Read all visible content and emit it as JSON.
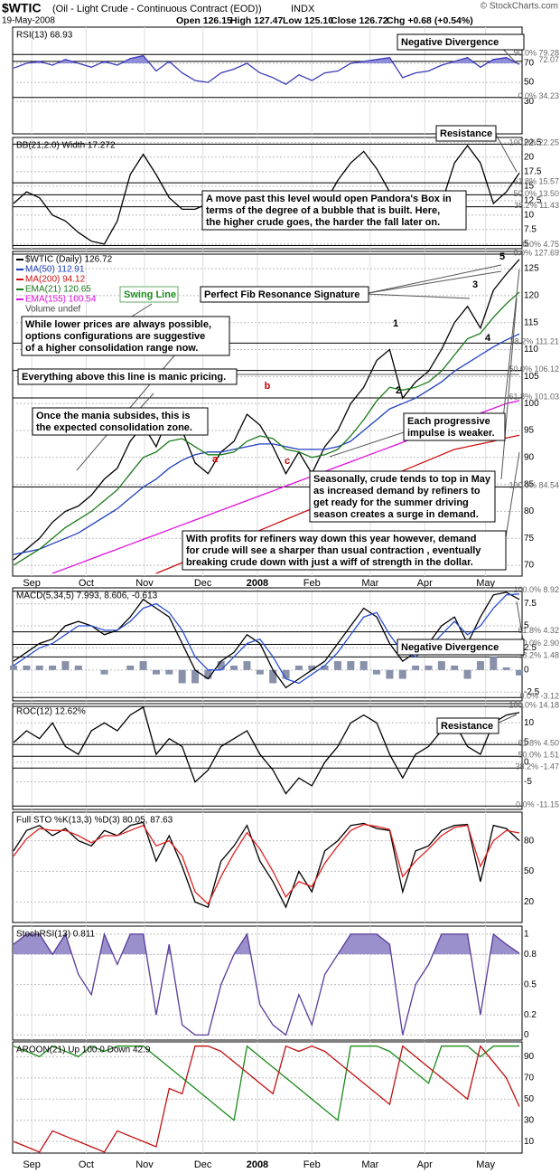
{
  "header": {
    "symbol": "$WTIC",
    "name": "(Oil - Light Crude - Continuous Contract (EOD))",
    "exchange": "INDX",
    "date": "19-May-2008",
    "quote": [
      "Open 126.15",
      "High 127.47",
      "Low 125.10",
      "Close 126.72",
      "Chg +0.68 (+0.54%)"
    ],
    "copyright": "© StockCharts.com"
  },
  "x_axis": {
    "ticks": [
      {
        "value": 1.4,
        "label": "Sep"
      },
      {
        "value": 5.6,
        "label": "Oct"
      },
      {
        "value": 10.1,
        "label": "Nov"
      },
      {
        "value": 14.6,
        "label": "Dec"
      },
      {
        "value": 18.8,
        "label": "2008"
      },
      {
        "value": 23,
        "label": "Feb"
      },
      {
        "value": 27.5,
        "label": "Mar"
      },
      {
        "value": 31.7,
        "label": "Apr"
      },
      {
        "value": 36.4,
        "label": "May"
      }
    ]
  },
  "chart_data": [
    {
      "type": "line",
      "ylim": [
        -4,
        108
      ],
      "yticks": [
        30,
        50,
        70
      ],
      "fill_above": 70,
      "fill_color": "#8e8ed8",
      "series": [
        {
          "name": "RSI(13) 68.93",
          "color": "#3a3ab8",
          "values": [
            65,
            70,
            72,
            68,
            74,
            70,
            66,
            72,
            68,
            75,
            78,
            62,
            72,
            60,
            52,
            50,
            60,
            64,
            70,
            60,
            55,
            48,
            58,
            52,
            60,
            62,
            70,
            72,
            74,
            76,
            55,
            60,
            62,
            68,
            72,
            76,
            66,
            74,
            76,
            68.93
          ]
        }
      ],
      "fib_levels": [
        {
          "value": 79.28,
          "label": "90.0% 79.28"
        },
        {
          "value": 72.07,
          "label": "72.07"
        },
        {
          "value": 34.23,
          "label": "0.0% 34.23"
        }
      ]
    },
    {
      "type": "line",
      "ylim": [
        4.2,
        23.4
      ],
      "yticks": [
        22.5,
        20.0,
        17.5,
        15.0,
        12.5,
        10.0,
        7.5,
        5.0
      ],
      "series": [
        {
          "name": "BB(21,2.0) Width 17.272",
          "color": "#000000",
          "values": [
            12,
            14,
            13,
            10,
            9,
            7,
            5.5,
            5,
            9,
            17,
            20.5,
            17,
            13,
            11,
            11,
            12,
            13,
            12,
            12,
            11,
            12,
            11,
            10,
            9,
            12,
            16,
            19,
            21,
            18,
            14,
            12,
            11,
            9,
            12,
            19,
            22,
            19,
            12,
            14,
            17.272
          ]
        }
      ],
      "fib_levels": [
        {
          "value": 22.25,
          "label": "100.0% 22.25"
        },
        {
          "value": 15.57,
          "label": "61.8% 15.57"
        },
        {
          "value": 13.5,
          "label": "50.0% 13.50"
        },
        {
          "value": 11.43,
          "label": "38.2% 11.43"
        },
        {
          "value": 4.75,
          "label": "0.0% 4.75"
        }
      ]
    },
    {
      "type": "line",
      "ylim": [
        68,
        128.2
      ],
      "yticks": [
        125,
        120,
        115,
        110,
        105,
        100,
        95,
        90,
        85,
        80,
        75,
        70
      ],
      "legend_extra": "Volume undef",
      "series": [
        {
          "name": "$WTIC (Daily) 126.72",
          "color": "#000000",
          "values": [
            71,
            73,
            75,
            78,
            80,
            81,
            83,
            86,
            88,
            93,
            96,
            92,
            98,
            95,
            89,
            87,
            91,
            93,
            98,
            96,
            92,
            87,
            91,
            87,
            92,
            95,
            100,
            103,
            108,
            110,
            101,
            104,
            106,
            110,
            115,
            118,
            114,
            121,
            124,
            126.72
          ]
        },
        {
          "name": "MA(50) 112.91",
          "color": "#1f3fbf",
          "values": [
            72,
            72.5,
            73,
            74,
            75,
            76,
            77.5,
            79,
            80.5,
            82.5,
            84.5,
            86,
            88,
            89.5,
            90.5,
            91,
            91,
            91.5,
            92,
            92.5,
            92.5,
            92,
            91.5,
            91.5,
            91.5,
            92,
            93,
            95,
            97,
            99,
            100,
            101,
            102.5,
            104,
            106,
            107.5,
            109,
            110.5,
            111.8,
            112.91
          ]
        },
        {
          "name": "MA(200) 94.12",
          "color": "#d01010",
          "values": [
            null,
            null,
            null,
            null,
            null,
            null,
            null,
            null,
            null,
            null,
            null,
            68.5,
            69.5,
            70.5,
            71.5,
            72.5,
            73.5,
            74.5,
            75.5,
            76.5,
            77.5,
            78.5,
            79.5,
            80.5,
            81.5,
            82.5,
            83.5,
            84.5,
            85.5,
            86.5,
            87.5,
            88.5,
            89.5,
            90.5,
            91.5,
            92,
            92.5,
            93,
            93.6,
            94.12
          ]
        },
        {
          "name": "EMA(21) 120.65",
          "color": "#1a7a1a",
          "values": [
            70,
            71.5,
            73,
            75,
            77,
            78.5,
            80,
            82,
            84,
            87,
            90,
            91,
            93,
            93.5,
            92,
            90.5,
            90.5,
            91,
            93,
            94,
            93.5,
            91.5,
            91,
            90,
            90.5,
            91.5,
            94,
            97,
            100.5,
            103,
            102.5,
            103,
            104,
            106,
            109,
            112,
            113,
            116,
            118.5,
            120.65
          ]
        },
        {
          "name": "EMA(155) 100.54",
          "color": "#e010e0",
          "values": [
            null,
            null,
            null,
            68.5,
            69.4,
            70.3,
            71.2,
            72.1,
            73.0,
            73.9,
            74.8,
            75.7,
            76.6,
            77.5,
            78.4,
            79.3,
            80.2,
            81.1,
            82.0,
            82.9,
            83.8,
            84.7,
            85.6,
            86.5,
            87.4,
            88.3,
            89.2,
            90.1,
            91.0,
            91.9,
            92.8,
            93.7,
            94.6,
            95.5,
            96.4,
            97.3,
            98.2,
            99.1,
            100.0,
            100.54
          ]
        }
      ],
      "fib_levels": [
        {
          "value": 127.69,
          "label": "0.0% 127.69"
        },
        {
          "value": 111.21,
          "label": "38.2% 111.21"
        },
        {
          "value": 106.12,
          "label": "50.0% 106.12"
        },
        {
          "value": 101.03,
          "label": "61.8% 101.03"
        },
        {
          "value": 84.54,
          "label": "100.0% 84.54"
        }
      ]
    },
    {
      "type": "macd",
      "label": "MACD(5,34,5) 7.993, 8.606, -0.613",
      "ylim": [
        -3.5,
        9.3
      ],
      "yticks": [
        7.5,
        5.0,
        2.5,
        0.0,
        -2.5
      ],
      "histogram": {
        "color": "#8890aa",
        "values": [
          0.5,
          0.5,
          0.5,
          0.5,
          1,
          0.5,
          0,
          -0.5,
          0,
          0.5,
          1,
          -0.5,
          -0.5,
          -1.5,
          -1.5,
          -1,
          1,
          0.5,
          1,
          -0.5,
          -1.5,
          -1,
          0.5,
          0.5,
          0.5,
          1,
          1,
          1,
          -0.5,
          -1,
          -1,
          0.5,
          0.5,
          1,
          0.5,
          -1,
          1,
          1.5,
          0.3,
          -0.613
        ]
      },
      "series": [
        {
          "color": "#000000",
          "values": [
            1,
            2,
            3,
            3.5,
            5,
            5.5,
            5,
            4,
            4.5,
            6,
            8,
            7,
            6,
            3,
            0,
            -1,
            1,
            2,
            4,
            3,
            0,
            -2,
            -1,
            0,
            1,
            3,
            5,
            7,
            6,
            3,
            1,
            2,
            3,
            5,
            6,
            3,
            6,
            8.5,
            8.8,
            7.993
          ]
        },
        {
          "color": "#2a4fd0",
          "values": [
            0.5,
            1.5,
            2.5,
            3,
            4,
            5,
            5,
            4.5,
            4.5,
            5.5,
            7,
            7.5,
            6.5,
            4.5,
            1.5,
            0,
            0,
            1.5,
            3,
            3.5,
            1.5,
            -1,
            -1.5,
            -0.5,
            0.5,
            2,
            4,
            6,
            6.5,
            4,
            2,
            1.5,
            2.5,
            4,
            5.5,
            4,
            5,
            7,
            8.5,
            8.606
          ]
        }
      ],
      "fib_levels": [
        {
          "value": 8.92,
          "label": "100.0% 8.92"
        },
        {
          "value": 4.32,
          "label": "61.8% 4.32"
        },
        {
          "value": 2.9,
          "label": "50.0% 2.90"
        },
        {
          "value": 1.48,
          "label": "38.2% 1.48"
        },
        {
          "value": -3.12,
          "label": "0.0% -3.12"
        }
      ]
    },
    {
      "type": "line",
      "ylim": [
        -12,
        14.9
      ],
      "yticks": [
        10,
        5,
        0,
        -5
      ],
      "series": [
        {
          "name": "ROC(12) 12.62%",
          "color": "#000000",
          "values": [
            5,
            8,
            6,
            10,
            4,
            2,
            8,
            10,
            8,
            12,
            14,
            2,
            6,
            4,
            -5,
            -2,
            4,
            6,
            8,
            2,
            -2,
            -8,
            -4,
            -6,
            0,
            4,
            10,
            12,
            10,
            2,
            -4,
            2,
            4,
            8,
            10,
            4,
            2,
            10,
            12,
            12.62
          ]
        }
      ],
      "fib_levels": [
        {
          "value": 14.18,
          "label": "100.0% 14.18"
        },
        {
          "value": 4.5,
          "label": "61.8% 4.50"
        },
        {
          "value": 1.51,
          "label": "50.0% 1.51"
        },
        {
          "value": -1.47,
          "label": "38.2% -1.47"
        },
        {
          "value": -11.15,
          "label": "0.0% -11.15"
        }
      ]
    },
    {
      "type": "line",
      "label": "Full STO %K(13,3) %D(3) 80.05, 87.63",
      "ylim": [
        0,
        108
      ],
      "yticks": [
        80,
        50,
        20
      ],
      "series": [
        {
          "color": "#000000",
          "values": [
            70,
            90,
            95,
            85,
            92,
            80,
            75,
            90,
            85,
            95,
            98,
            60,
            85,
            55,
            20,
            15,
            60,
            75,
            95,
            60,
            40,
            15,
            50,
            30,
            70,
            80,
            95,
            97,
            92,
            90,
            30,
            70,
            75,
            90,
            95,
            96,
            40,
            95,
            92,
            80.05
          ]
        },
        {
          "color": "#e02020",
          "values": [
            65,
            82,
            92,
            90,
            90,
            85,
            78,
            85,
            85,
            90,
            95,
            75,
            80,
            65,
            30,
            18,
            45,
            68,
            88,
            72,
            50,
            25,
            40,
            35,
            58,
            75,
            90,
            96,
            94,
            91,
            45,
            60,
            72,
            85,
            93,
            95,
            55,
            80,
            90,
            87.63
          ]
        }
      ]
    },
    {
      "type": "line",
      "ylim": [
        -0.05,
        1.08
      ],
      "yticks": [
        1.0,
        0.8,
        0.5,
        0.2,
        0.0
      ],
      "fill_above": 0.8,
      "fill_color": "#9a90cc",
      "series": [
        {
          "name": "StochRSI(13) 0.811",
          "color": "#5a3a9a",
          "values": [
            0.9,
            1,
            1,
            0.8,
            1,
            0.6,
            0.4,
            1,
            0.7,
            1,
            1,
            0.2,
            0.9,
            0.1,
            0,
            0,
            0.5,
            0.8,
            1,
            0.3,
            0.1,
            0,
            0.4,
            0.1,
            0.6,
            0.8,
            1,
            1,
            1,
            0.9,
            0,
            0.5,
            0.7,
            1,
            1,
            1,
            0.2,
            1,
            0.9,
            0.811
          ]
        }
      ]
    },
    {
      "type": "line",
      "label": "AROON(21) Up 100.0 Down 42.9",
      "ylim": [
        -1,
        104
      ],
      "yticks": [
        90,
        70,
        50,
        30,
        10
      ],
      "series": [
        {
          "color": "#1a8a1a",
          "values": [
            100,
            95,
            90,
            100,
            95,
            90,
            100,
            95,
            100,
            100,
            100,
            90,
            80,
            70,
            60,
            50,
            40,
            30,
            100,
            90,
            80,
            70,
            60,
            50,
            40,
            30,
            100,
            100,
            100,
            95,
            85,
            75,
            65,
            100,
            100,
            100,
            90,
            100,
            100,
            100
          ]
        },
        {
          "color": "#c01010",
          "values": [
            10,
            5,
            0,
            20,
            15,
            10,
            5,
            0,
            20,
            15,
            10,
            5,
            60,
            55,
            100,
            100,
            95,
            85,
            75,
            65,
            55,
            100,
            95,
            100,
            95,
            85,
            75,
            65,
            55,
            45,
            100,
            90,
            80,
            70,
            60,
            50,
            100,
            85,
            70,
            42.9
          ]
        }
      ]
    }
  ],
  "wave_labels": [
    "1",
    "2",
    "3",
    "4",
    "5",
    "a",
    "b",
    "c"
  ],
  "annotations": [
    {
      "lines": [
        "Negative Divergence"
      ]
    },
    {
      "lines": [
        "Resistance"
      ]
    },
    {
      "lines": [
        "A move past this level would open Pandora's Box in",
        "terms of the degree of a bubble that is built. Here,",
        "the higher crude goes, the harder the fall later on."
      ]
    },
    {
      "lines": [
        "Swing Line"
      ]
    },
    {
      "lines": [
        "Perfect Fib Resonance Signature"
      ]
    },
    {
      "lines": [
        "While lower prices are always possible,",
        "options configurations are suggestive",
        "of a higher consolidation range now."
      ]
    },
    {
      "lines": [
        "Everything above this line is manic pricing."
      ]
    },
    {
      "lines": [
        "Once the mania subsides, this is",
        "the expected consolidation zone."
      ]
    },
    {
      "lines": [
        "Each progressive",
        "impulse is weaker."
      ]
    },
    {
      "lines": [
        "Seasonally, crude tends to top in May",
        "as increased demand by refiners to",
        "get ready for the summer driving",
        "season creates a surge in demand."
      ]
    },
    {
      "lines": [
        "With profits for refiners way down this year however, demand",
        "for crude will see a sharper than usual contraction , eventually",
        "breaking crude down with just a wiff of strength in the dollar."
      ]
    },
    {
      "lines": [
        "Negative Divergence"
      ]
    },
    {
      "lines": [
        "Resistance"
      ]
    }
  ]
}
